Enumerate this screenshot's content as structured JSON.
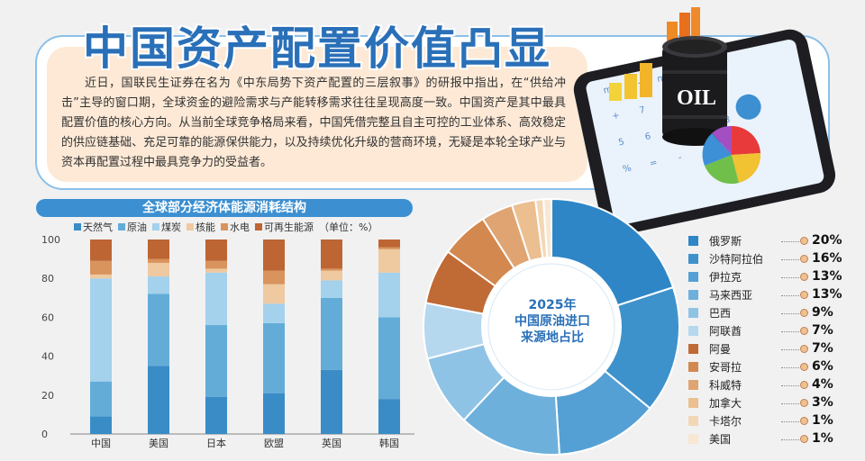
{
  "headline": "中国资产配置价值凸显",
  "intro": "近日，国联民生证券在名为《中东局势下资产配置的三层叙事》的研报中指出，在“供给冲击”主导的窗口期，全球资金的避险需求与产能转移需求往往呈现高度一致。中国资产是其中最具配置价值的核心方向。从当前全球竞争格局来看，中国凭借完整且自主可控的工业体系、高效稳定的供应链基础、充足可靠的能源保供能力，以及持续优化升级的营商环境，无疑是本轮全球产业与资本再配置过程中最具竞争力的受益者。",
  "illustration": {
    "oil_label": "OIL",
    "calc_keys": [
      "mc",
      "m+",
      "m-",
      "mr",
      "AC",
      "+",
      "7",
      "8",
      "9",
      "4",
      "5",
      "6",
      "1",
      "2",
      "3",
      "%",
      "=",
      "-",
      "×"
    ]
  },
  "colors": {
    "background": "#f1f1f2",
    "accent": "#2a70b8",
    "title_band": "#3c8fd0",
    "intro_panel": "#fde9d6"
  },
  "chart_data": [
    {
      "type": "bar",
      "stacked": true,
      "title": "全球部分经济体能源消耗结构",
      "unit_note": "（单位：%）",
      "categories": [
        "中国",
        "美国",
        "日本",
        "欧盟",
        "英国",
        "韩国"
      ],
      "ylim": [
        0,
        100
      ],
      "yticks": [
        0,
        20,
        40,
        60,
        80,
        100
      ],
      "grid": false,
      "legend_position": "top",
      "series": [
        {
          "name": "天然气",
          "color": "#3a8cc6",
          "values": [
            9,
            35,
            19,
            21,
            33,
            18
          ]
        },
        {
          "name": "原油",
          "color": "#63acd8",
          "values": [
            18,
            37,
            37,
            36,
            37,
            42
          ]
        },
        {
          "name": "煤炭",
          "color": "#a4d1ec",
          "values": [
            53,
            9,
            27,
            10,
            9,
            23
          ]
        },
        {
          "name": "核能",
          "color": "#efc9a0",
          "values": [
            2,
            7,
            2,
            10,
            5,
            12
          ]
        },
        {
          "name": "水电",
          "color": "#d9935d",
          "values": [
            7,
            2,
            4,
            7,
            1,
            1
          ]
        },
        {
          "name": "可再生能源",
          "color": "#bd6533",
          "values": [
            11,
            10,
            11,
            16,
            15,
            4
          ]
        }
      ]
    },
    {
      "type": "pie",
      "donut": true,
      "title": "2025年中国原油进口来源地占比",
      "title_lines": [
        "2025年",
        "中国原油进口",
        "来源地占比"
      ],
      "legend_position": "right",
      "slices": [
        {
          "label": "俄罗斯",
          "value": 20,
          "display": "20%",
          "color": "#2e86c7"
        },
        {
          "label": "沙特阿拉伯",
          "value": 16,
          "display": "16%",
          "color": "#3d92cc"
        },
        {
          "label": "伊拉克",
          "value": 13,
          "display": "13%",
          "color": "#54a0d4"
        },
        {
          "label": "马来西亚",
          "value": 13,
          "display": "13%",
          "color": "#6eb0dc"
        },
        {
          "label": "巴西",
          "value": 9,
          "display": "9%",
          "color": "#8fc3e6"
        },
        {
          "label": "阿联酋",
          "value": 7,
          "display": "7%",
          "color": "#b5d8ef"
        },
        {
          "label": "阿曼",
          "value": 7,
          "display": "7%",
          "color": "#c06a35"
        },
        {
          "label": "安哥拉",
          "value": 6,
          "display": "6%",
          "color": "#d2884f"
        },
        {
          "label": "科威特",
          "value": 4,
          "display": "4%",
          "color": "#e0a472"
        },
        {
          "label": "加拿大",
          "value": 3,
          "display": "3%",
          "color": "#ebbf90"
        },
        {
          "label": "卡塔尔",
          "value": 1,
          "display": "1%",
          "color": "#f3d7b4"
        },
        {
          "label": "美国",
          "value": 1,
          "display": "1%",
          "color": "#f8e7d2"
        }
      ]
    }
  ]
}
